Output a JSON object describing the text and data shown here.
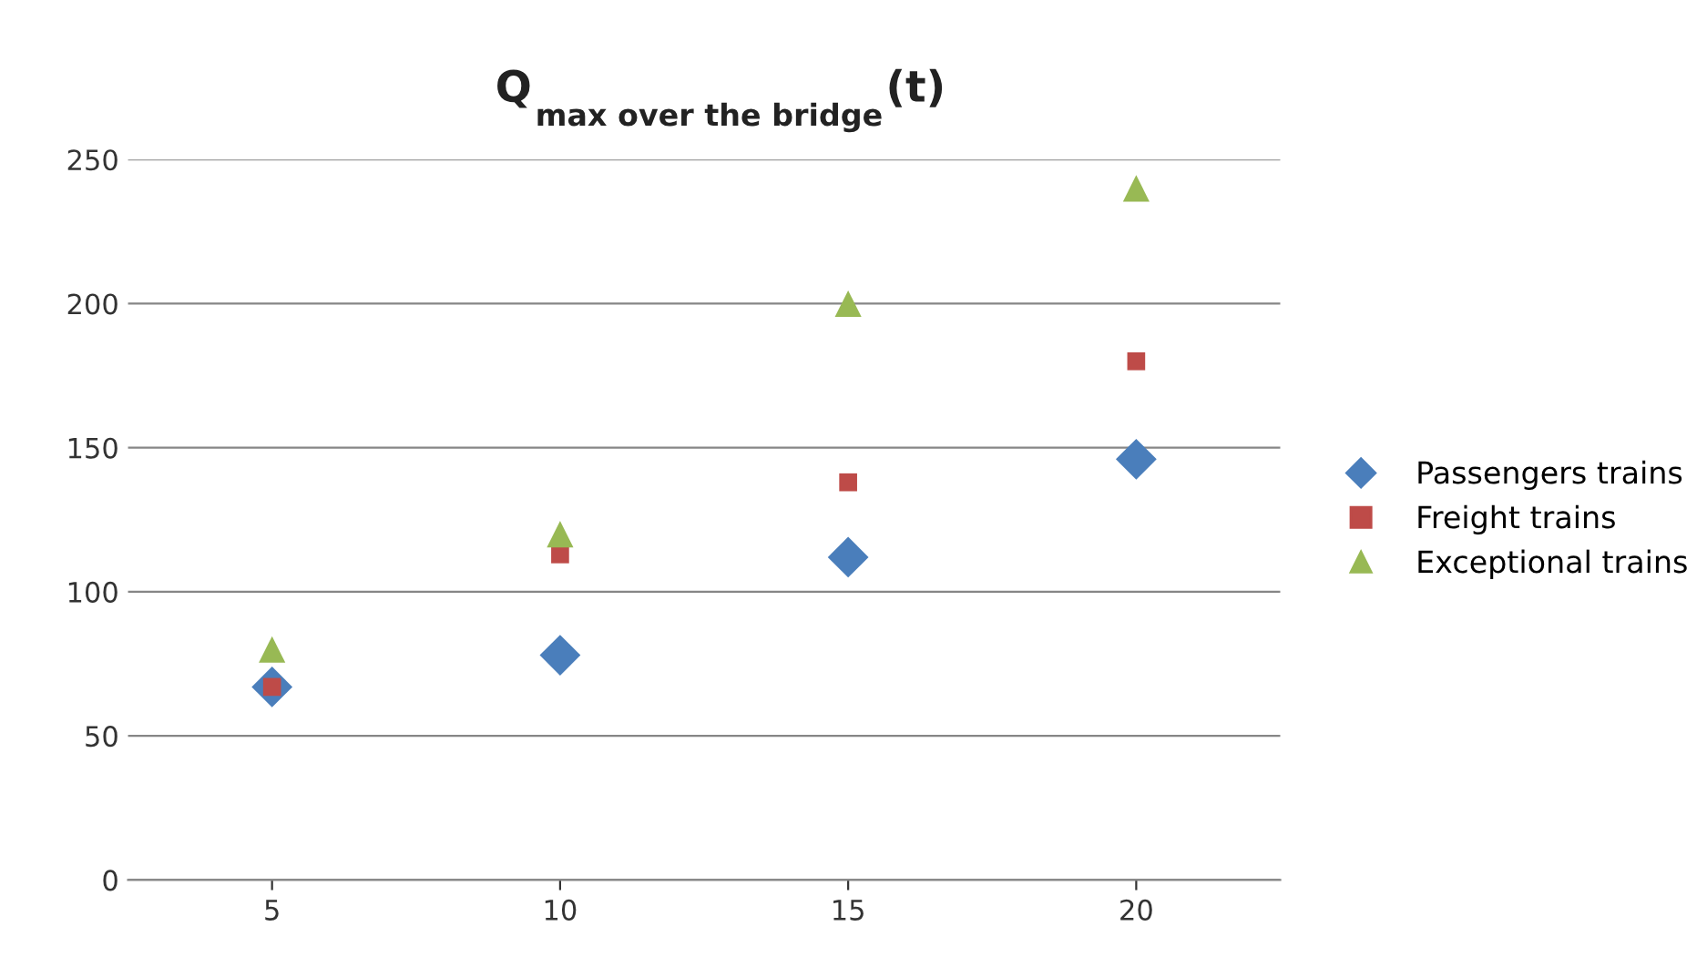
{
  "chart_data": {
    "type": "scatter",
    "title": "Q$_{max over the bridge}$(t)",
    "categories": [
      "5",
      "10",
      "15",
      "20"
    ],
    "series": [
      {
        "name": "Passengers trains",
        "color": "#4a7ebb",
        "marker": "diamond",
        "values": [
          67,
          78,
          112,
          146
        ]
      },
      {
        "name": "Freight trains",
        "color": "#be4b48",
        "marker": "square",
        "values": [
          67,
          113,
          138,
          180
        ]
      },
      {
        "name": "Exceptional trains",
        "color": "#98b954",
        "marker": "triangle",
        "values": [
          80,
          120,
          200,
          240
        ]
      }
    ],
    "ylim": [
      0,
      250
    ],
    "yticks": [
      0,
      50,
      100,
      150,
      200,
      250
    ],
    "grid": "y",
    "legend": "right"
  }
}
